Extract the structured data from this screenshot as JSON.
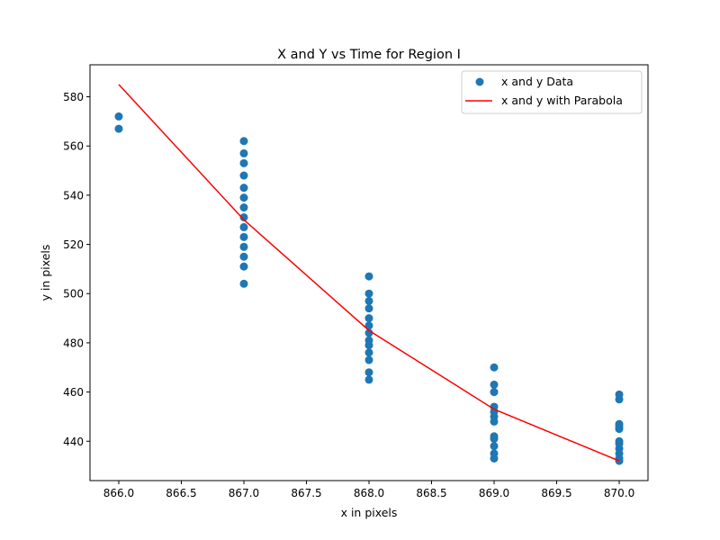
{
  "chart_data": {
    "type": "scatter",
    "title": "X and Y vs Time for Region I",
    "xlabel": "x in pixels",
    "ylabel": "y in pixels",
    "xlim": [
      865.77,
      870.23
    ],
    "ylim": [
      424,
      593
    ],
    "xticks": [
      866.0,
      866.5,
      867.0,
      867.5,
      868.0,
      868.5,
      869.0,
      869.5,
      870.0
    ],
    "xtick_labels": [
      "866.0",
      "866.5",
      "867.0",
      "867.5",
      "868.0",
      "868.5",
      "869.0",
      "869.5",
      "870.0"
    ],
    "yticks": [
      440,
      460,
      480,
      500,
      520,
      540,
      560,
      580
    ],
    "ytick_labels": [
      "440",
      "460",
      "480",
      "500",
      "520",
      "540",
      "560",
      "580"
    ],
    "grid": false,
    "legend_position": "upper right",
    "series": [
      {
        "name": "x and y Data",
        "kind": "scatter",
        "color": "#1f77b4",
        "points": [
          [
            866,
            572
          ],
          [
            866,
            567
          ],
          [
            867,
            562
          ],
          [
            867,
            557
          ],
          [
            867,
            553
          ],
          [
            867,
            548
          ],
          [
            867,
            543
          ],
          [
            867,
            539
          ],
          [
            867,
            535
          ],
          [
            867,
            531
          ],
          [
            867,
            527
          ],
          [
            867,
            523
          ],
          [
            867,
            519
          ],
          [
            867,
            515
          ],
          [
            867,
            511
          ],
          [
            867,
            504
          ],
          [
            868,
            507
          ],
          [
            868,
            500
          ],
          [
            868,
            497
          ],
          [
            868,
            494
          ],
          [
            868,
            490
          ],
          [
            868,
            487
          ],
          [
            868,
            484
          ],
          [
            868,
            481
          ],
          [
            868,
            479
          ],
          [
            868,
            476
          ],
          [
            868,
            473
          ],
          [
            868,
            468
          ],
          [
            868,
            465
          ],
          [
            869,
            470
          ],
          [
            869,
            463
          ],
          [
            869,
            460
          ],
          [
            869,
            454
          ],
          [
            869,
            452
          ],
          [
            869,
            450
          ],
          [
            869,
            448
          ],
          [
            869,
            442
          ],
          [
            869,
            441
          ],
          [
            869,
            438
          ],
          [
            869,
            435
          ],
          [
            869,
            433
          ],
          [
            870,
            459
          ],
          [
            870,
            457
          ],
          [
            870,
            447
          ],
          [
            870,
            446
          ],
          [
            870,
            445
          ],
          [
            870,
            440
          ],
          [
            870,
            439
          ],
          [
            870,
            437
          ],
          [
            870,
            435
          ],
          [
            870,
            433
          ],
          [
            870,
            432
          ]
        ]
      },
      {
        "name": "x and y with Parabola",
        "kind": "line",
        "color": "#ff0000",
        "points": [
          [
            866,
            585
          ],
          [
            867,
            530
          ],
          [
            868,
            485
          ],
          [
            869,
            453
          ],
          [
            870,
            432
          ]
        ]
      }
    ]
  }
}
